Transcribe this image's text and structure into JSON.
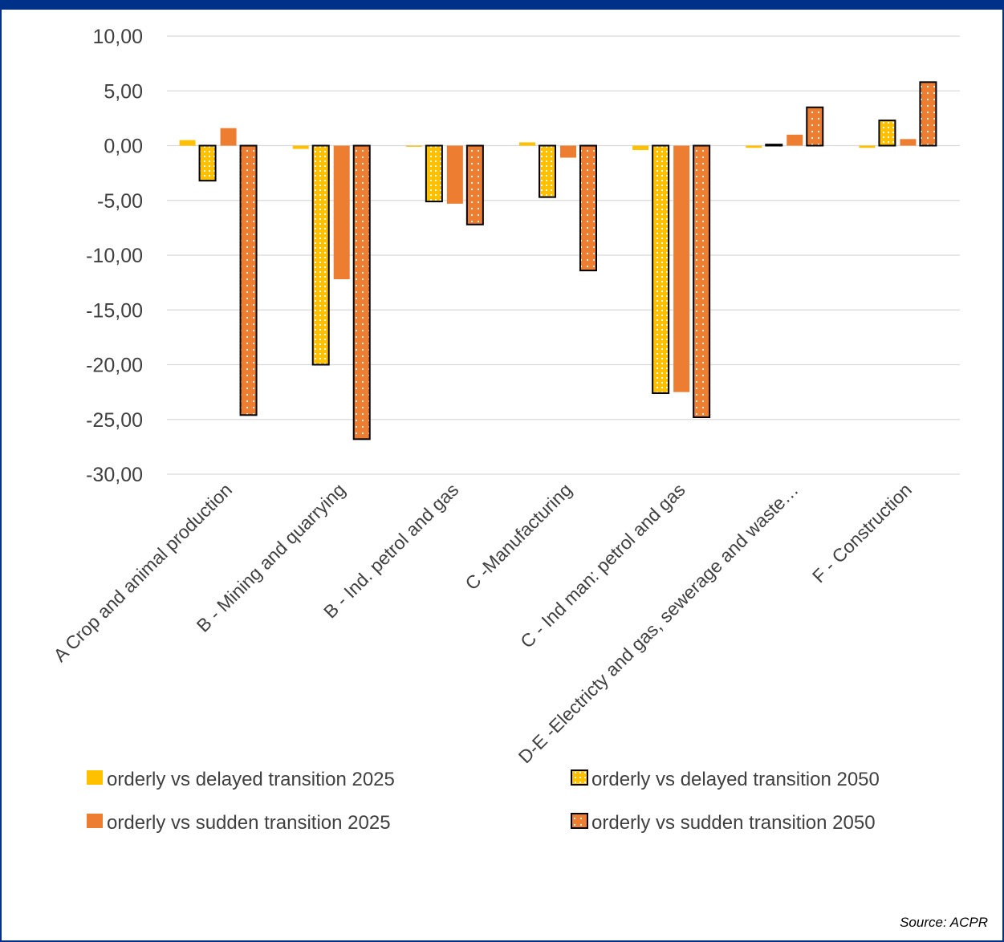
{
  "chart_data": {
    "type": "bar",
    "title": "",
    "xlabel": "",
    "ylabel": "",
    "ylim": [
      -30,
      10
    ],
    "yticks": [
      10,
      5,
      0,
      -5,
      -10,
      -15,
      -20,
      -25,
      -30
    ],
    "ytick_labels": [
      "10,00",
      "5,00",
      "0,00",
      "-5,00",
      "-10,00",
      "-15,00",
      "-20,00",
      "-25,00",
      "-30,00"
    ],
    "grid": true,
    "legend_position": "bottom",
    "categories": [
      "A Crop and animal production",
      "B - Mining and quarrying",
      "B - Ind. petrol and gas",
      "C -Manufacturing",
      "C - Ind man: petrol and gas",
      "D-E -Electricty and gas, sewerage and waste…",
      "F - Construction"
    ],
    "series": [
      {
        "name": "orderly vs delayed transition 2025",
        "color": "#FFC000",
        "pattern": "solid",
        "values": [
          0.5,
          -0.3,
          -0.1,
          0.3,
          -0.4,
          -0.2,
          -0.2
        ]
      },
      {
        "name": "orderly vs delayed transition 2050",
        "color": "#FFC000",
        "pattern": "dotted",
        "values": [
          -3.2,
          -20.0,
          -5.1,
          -4.7,
          -22.6,
          0.1,
          2.3
        ]
      },
      {
        "name": "orderly vs sudden transition 2025",
        "color": "#ED7D31",
        "pattern": "solid",
        "values": [
          1.6,
          -12.2,
          -5.3,
          -1.1,
          -22.5,
          1.0,
          0.6
        ]
      },
      {
        "name": "orderly vs sudden transition 2050",
        "color": "#ED7D31",
        "pattern": "dotted",
        "values": [
          -24.6,
          -26.8,
          -7.2,
          -11.4,
          -24.8,
          3.5,
          5.8
        ]
      }
    ]
  },
  "source": "Source: ACPR",
  "colors": {
    "frame": "#003189",
    "grid": "#D9D9D9",
    "axis_text": "#404040"
  }
}
